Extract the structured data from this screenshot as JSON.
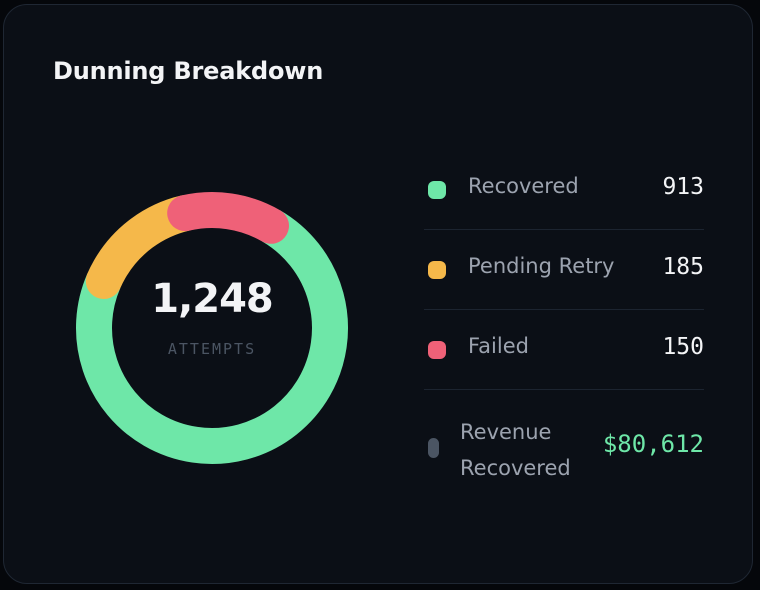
{
  "card": {
    "title": "Dunning Breakdown"
  },
  "chart_data": {
    "type": "pie",
    "variant": "donut",
    "title": "Dunning Breakdown",
    "center_value": "1,248",
    "center_label": "ATTEMPTS",
    "total": 1248,
    "series": [
      {
        "name": "Recovered",
        "value": 913,
        "display": "913",
        "color": "#6ee7a8"
      },
      {
        "name": "Pending Retry",
        "value": 185,
        "display": "185",
        "color": "#f5b84a"
      },
      {
        "name": "Failed",
        "value": 150,
        "display": "150",
        "color": "#ef6178"
      }
    ],
    "legend_placement": "right"
  },
  "revenue": {
    "label": "Revenue Recovered",
    "value": "$80,612",
    "color": "#6ee7a8",
    "swatch_color": "#4b5563"
  }
}
